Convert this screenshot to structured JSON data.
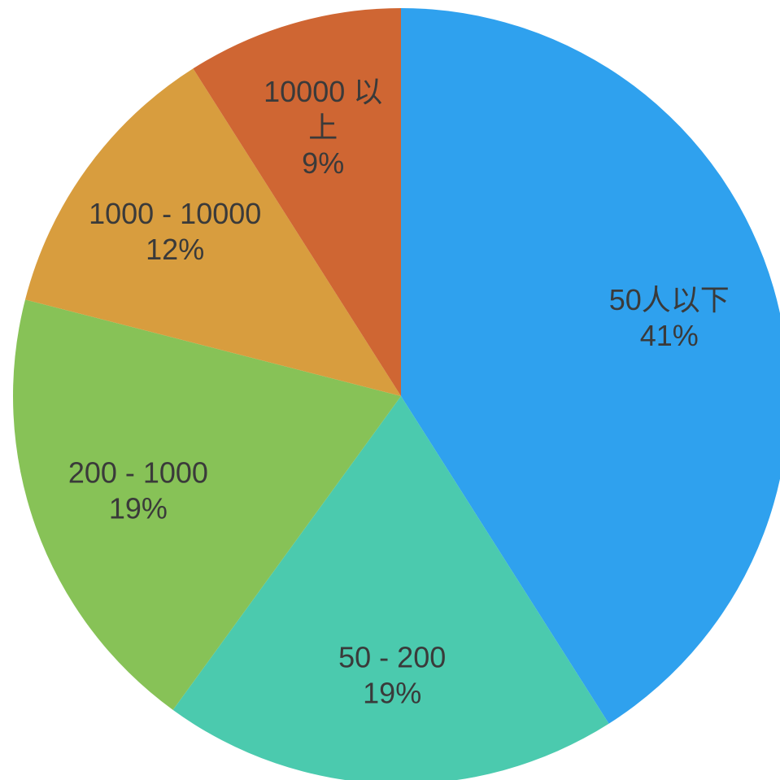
{
  "chart_data": {
    "type": "pie",
    "title": "",
    "legend": "none",
    "start_angle_deg": 0,
    "direction": "clockwise",
    "slices": [
      {
        "label_lines": [
          "50人以下"
        ],
        "label": "50人以下",
        "value": 41,
        "percent_label": "41%",
        "color": "#2FA1EE"
      },
      {
        "label_lines": [
          "50 - 200"
        ],
        "label": "50 - 200",
        "value": 19,
        "percent_label": "19%",
        "color": "#4BCAAE"
      },
      {
        "label_lines": [
          "200 - 1000"
        ],
        "label": "200 - 1000",
        "value": 19,
        "percent_label": "19%",
        "color": "#87C257"
      },
      {
        "label_lines": [
          "1000 - 10000"
        ],
        "label": "1000 - 10000",
        "value": 12,
        "percent_label": "12%",
        "color": "#D89D3E"
      },
      {
        "label_lines": [
          "10000 以",
          "上"
        ],
        "label": "10000 以上",
        "value": 9,
        "percent_label": "9%",
        "color": "#CF6633"
      }
    ]
  }
}
